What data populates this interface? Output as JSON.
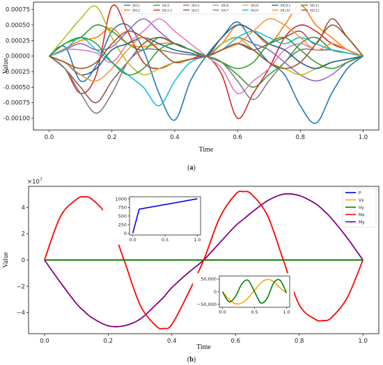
{
  "colors": {
    "frame": "#000000",
    "background": "#ffffff"
  },
  "chart_data": [
    {
      "panel_label": "a",
      "type": "line",
      "title": "",
      "xlabel": "Time",
      "ylabel": "Value",
      "xlim": [
        -0.05,
        1.05
      ],
      "ylim": [
        -0.00119,
        0.00087
      ],
      "xticks": [
        "0.0",
        "0.2",
        "0.4",
        "0.6",
        "0.8",
        "1.0"
      ],
      "yticks": [
        "0.00075",
        "0.00050",
        "0.00025",
        "0.00000",
        "-0.00025",
        "-0.00050",
        "-0.00075",
        "-0.00100"
      ],
      "legend": "top-center",
      "grid": false,
      "x": [
        0,
        0.05,
        0.1,
        0.15,
        0.2,
        0.25,
        0.3,
        0.35,
        0.4,
        0.45,
        0.5,
        0.55,
        0.6,
        0.65,
        0.7,
        0.75,
        0.8,
        0.85,
        0.9,
        0.95,
        1.0
      ],
      "series": [
        {
          "name": "SIG1",
          "color": "#1f77b4",
          "values": [
            0,
            0.00015,
            -0.0004,
            -0.00015,
            0.0004,
            0.0005,
            0.0001,
            -0.0006,
            -0.00103,
            -0.0004,
            0,
            0.0003,
            0.00055,
            0.0002,
            -0.0001,
            -0.0003,
            -0.0008,
            -0.00108,
            -0.0006,
            -0.0002,
            0
          ]
        },
        {
          "name": "SIG2",
          "color": "#ff7f0e",
          "values": [
            0,
            0.00012,
            0.00025,
            0.0003,
            0.00045,
            0.0002,
            0.00015,
            0.0002,
            0.0002,
            0.0001,
            0,
            0.0002,
            0.0005,
            0.0004,
            0.0002,
            0.0005,
            0.00082,
            0.0005,
            0.0003,
            0.0001,
            0
          ]
        },
        {
          "name": "SIG3",
          "color": "#2ca02c",
          "values": [
            0,
            0.0002,
            0.0003,
            0.0005,
            0.0004,
            0.0002,
            0.0001,
            0.0003,
            0.0002,
            0.0001,
            0,
            -0.0001,
            -0.0003,
            -0.0005,
            -0.0003,
            -0.0001,
            0.0002,
            0.0003,
            0.0001,
            5e-05,
            0
          ]
        },
        {
          "name": "SIG3.5",
          "color": "#d62728",
          "values": [
            0,
            -0.0002,
            -0.0006,
            -0.0003,
            0.0008,
            0.0004,
            -0.0001,
            -0.0002,
            -0.0001,
            -5e-05,
            0,
            -0.0003,
            -0.001,
            -0.0006,
            -0.0002,
            0.0003,
            0.0005,
            0.0004,
            0.0002,
            0.0001,
            0
          ]
        },
        {
          "name": "SIG4",
          "color": "#9467bd",
          "values": [
            0,
            0.0001,
            0.0002,
            0.0001,
            0.00015,
            0.0004,
            0.0006,
            0.0004,
            0.0002,
            0.0001,
            0,
            0.0002,
            0.0003,
            0.0002,
            0.0001,
            -0.0001,
            -0.0003,
            -0.0004,
            -0.0003,
            -0.0001,
            0
          ]
        },
        {
          "name": "SIG5",
          "color": "#8c564b",
          "values": [
            0,
            -0.0002,
            -0.0005,
            -0.00075,
            -0.0004,
            -0.0001,
            0.0002,
            0.0003,
            0.0002,
            0.0001,
            0,
            0.0001,
            0.0002,
            0.0001,
            0.0002,
            0.0003,
            0.0004,
            0.0002,
            0.0006,
            0.0003,
            0
          ]
        },
        {
          "name": "SIG6",
          "color": "#e377c2",
          "values": [
            0,
            0.0001,
            0.0001,
            5e-05,
            -0.0001,
            0.0002,
            0.0004,
            0.0006,
            0.0004,
            0.0002,
            0,
            -0.0002,
            -0.0006,
            -0.0004,
            -0.0002,
            0.0001,
            0.0002,
            0.0001,
            0.0001,
            5e-05,
            0
          ]
        },
        {
          "name": "SIG7",
          "color": "#7f7f7f",
          "values": [
            0,
            -0.0002,
            -0.0006,
            -0.00092,
            -0.0006,
            -0.0001,
            0.0001,
            0.0001,
            5e-05,
            2e-05,
            0,
            -0.0001,
            -0.0004,
            -0.0007,
            -0.0004,
            -0.0001,
            0.0001,
            0.0001,
            0.0001,
            5e-05,
            0
          ]
        },
        {
          "name": "SIG8",
          "color": "#bcbd22",
          "values": [
            0,
            0.0003,
            0.0006,
            0.0008,
            0.0003,
            -0.0001,
            -0.0003,
            -0.0002,
            -0.0001,
            -5e-05,
            0,
            0.0002,
            0.0003,
            0.0001,
            -0.0001,
            -0.0002,
            -0.0003,
            -0.0002,
            -0.0001,
            -5e-05,
            0
          ]
        },
        {
          "name": "SIG9",
          "color": "#17becf",
          "values": [
            0,
            0.0001,
            0.0003,
            0.0001,
            -0.0001,
            -0.0003,
            -0.0005,
            -0.0008,
            -0.0004,
            -0.0001,
            0,
            0.0001,
            0.0003,
            0.0004,
            0.0003,
            0.0002,
            0.0003,
            0.0002,
            0.0001,
            5e-05,
            0
          ]
        },
        {
          "name": "SIG9.5",
          "color": "#1f5f8b",
          "values": [
            0,
            -0.0001,
            -0.0003,
            -0.0002,
            0.0001,
            0.0002,
            0.0003,
            0.0002,
            0.0001,
            5e-05,
            0,
            0.0003,
            0.0005,
            0.0004,
            0.0002,
            0.0001,
            -0.0001,
            -0.0002,
            -0.0001,
            -5e-05,
            0
          ]
        },
        {
          "name": "SIG10",
          "color": "#f0993e",
          "values": [
            0,
            -0.0001,
            -0.0003,
            -0.0004,
            -0.0002,
            0.0001,
            0.0003,
            0.0001,
            -0.0001,
            -5e-05,
            0,
            0.0001,
            0.0002,
            0.0004,
            0.0006,
            0.0005,
            0.0003,
            0.0001,
            0.0002,
            0.0001,
            0
          ]
        },
        {
          "name": "SIG11",
          "color": "#30a030",
          "values": [
            0,
            0.0002,
            0.0003,
            0.0002,
            -0.0001,
            -0.0003,
            -0.0002,
            0.0001,
            0.0002,
            0.0001,
            0,
            -0.0001,
            -0.0002,
            -0.0001,
            0.0002,
            0.0003,
            0.0001,
            -0.0001,
            -0.0002,
            -0.0001,
            0
          ]
        },
        {
          "name": "SIG12",
          "color": "#a0522d",
          "values": [
            0,
            -0.0001,
            -0.0002,
            -0.0001,
            0.0002,
            0.0004,
            0.0003,
            0.0001,
            -0.0001,
            -5e-05,
            0,
            0.0001,
            0.0002,
            0.0001,
            -0.0001,
            -0.0002,
            -0.0001,
            0.0002,
            0.0005,
            0.0003,
            0
          ]
        }
      ]
    },
    {
      "panel_label": "b",
      "type": "line",
      "title": "",
      "xlabel": "Time",
      "ylabel": "Value",
      "scale_label": "×10",
      "scale_exp": "7",
      "xlim": [
        -0.05,
        1.05
      ],
      "ylim": [
        -5.6,
        5.6
      ],
      "xticks": [
        "0.0",
        "0.2",
        "0.4",
        "0.6",
        "0.8",
        "1.0"
      ],
      "yticks": [
        "4",
        "2",
        "0",
        "−2",
        "−4"
      ],
      "legend": "top-right",
      "grid": false,
      "x": [
        0,
        0.05,
        0.1,
        0.125,
        0.15,
        0.2,
        0.25,
        0.3,
        0.35,
        0.375,
        0.4,
        0.45,
        0.5,
        0.55,
        0.6,
        0.625,
        0.65,
        0.7,
        0.75,
        0.8,
        0.85,
        0.875,
        0.9,
        0.95,
        1.0
      ],
      "series": [
        {
          "name": "P",
          "color": "#0000ee",
          "values": [
            0,
            0,
            0,
            0,
            0,
            0,
            0,
            0,
            0,
            0,
            0,
            0,
            0,
            0,
            0,
            0,
            0,
            0,
            0,
            0,
            0,
            0,
            0,
            0,
            0
          ]
        },
        {
          "name": "Vx",
          "color": "#ffa500",
          "values": [
            0,
            0,
            0,
            0,
            0,
            0,
            0,
            0,
            0,
            0,
            0,
            0,
            0,
            0,
            0,
            0,
            0,
            0,
            0,
            0,
            0,
            0,
            0,
            0,
            0
          ]
        },
        {
          "name": "Vy",
          "color": "#008000",
          "values": [
            0,
            0,
            0,
            0,
            0,
            0,
            0,
            0,
            0,
            0,
            0,
            0,
            0,
            0,
            0,
            0,
            0,
            0,
            0,
            0,
            0,
            0,
            0,
            0,
            0
          ]
        },
        {
          "name": "Mx",
          "color": "#ff0000",
          "values": [
            0,
            3.3,
            4.6,
            4.8,
            4.6,
            3.2,
            0.0,
            -3.4,
            -5.0,
            -5.2,
            -4.9,
            -2.6,
            0.0,
            3.2,
            5.0,
            5.2,
            5.0,
            3.4,
            0.0,
            -3.4,
            -4.5,
            -4.6,
            -4.4,
            -2.9,
            0
          ]
        },
        {
          "name": "My",
          "color": "#800080",
          "values": [
            0,
            -1.7,
            -3.3,
            -3.9,
            -4.4,
            -5.0,
            -5.0,
            -4.5,
            -3.4,
            -2.8,
            -2.1,
            -1.0,
            0.0,
            1.3,
            2.6,
            3.1,
            3.6,
            4.5,
            5.0,
            4.9,
            4.3,
            3.8,
            3.2,
            1.7,
            0
          ]
        }
      ],
      "insets": [
        {
          "position": "upper-middle",
          "xlim": [
            -0.05,
            1.05
          ],
          "ylim": [
            -50,
            1060
          ],
          "xticks": [
            "0.0",
            "0.5",
            "1.0"
          ],
          "yticks": [
            "0",
            "250",
            "500",
            "750",
            "1000"
          ],
          "series": [
            {
              "name": "P",
              "color": "#0000ee",
              "x": [
                0,
                0.1,
                1.0
              ],
              "values": [
                0,
                700,
                1000
              ]
            }
          ]
        },
        {
          "position": "lower-right",
          "xlim": [
            -0.05,
            1.05
          ],
          "ylim": [
            -62000,
            62000
          ],
          "xticks": [
            "0.0",
            "0.5",
            "1.0"
          ],
          "yticks": [
            "50,000",
            "0",
            "−50,000"
          ],
          "series": [
            {
              "name": "Vx",
              "color": "#ffa500",
              "x": [
                0,
                0.1,
                0.2,
                0.3,
                0.4,
                0.5,
                0.6,
                0.7,
                0.8,
                0.9,
                1.0
              ],
              "values": [
                0,
                -30000,
                -48000,
                -45000,
                -25000,
                5000,
                35000,
                48000,
                40000,
                15000,
                -5000
              ]
            },
            {
              "name": "Vy",
              "color": "#008000",
              "x": [
                0,
                0.1,
                0.2,
                0.3,
                0.4,
                0.5,
                0.6,
                0.7,
                0.8,
                0.9,
                1.0
              ],
              "values": [
                0,
                -40000,
                -20000,
                30000,
                45000,
                0,
                -45000,
                -25000,
                35000,
                45000,
                -5000
              ]
            }
          ]
        }
      ]
    }
  ]
}
